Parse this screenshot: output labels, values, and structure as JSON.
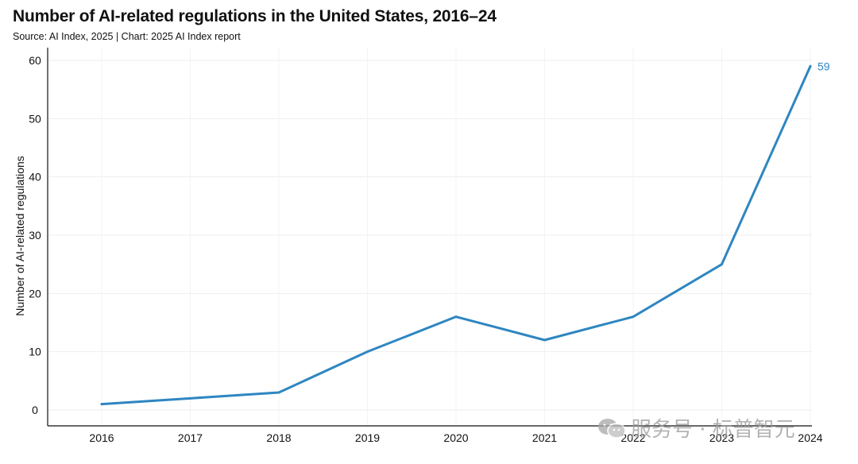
{
  "title": "Number of AI-related regulations in the United States, 2016–24",
  "subtitle": "Source: AI Index, 2025 | Chart: 2025 AI Index report",
  "watermark": "服务号 · 标普智元",
  "chart_data": {
    "type": "line",
    "x": [
      "2016",
      "2017",
      "2018",
      "2019",
      "2020",
      "2021",
      "2022",
      "2023",
      "2024"
    ],
    "series": [
      {
        "values": [
          1,
          2,
          3,
          10,
          16,
          12,
          16,
          25,
          59
        ]
      }
    ],
    "ylabel": "Number of AI-related regulations",
    "ylim": [
      0,
      60
    ],
    "yticks": [
      0,
      10,
      20,
      30,
      40,
      50,
      60
    ],
    "data_labels": [
      {
        "x": "2024",
        "text": "59"
      }
    ],
    "line_color": "#2e86c1",
    "grid": true
  }
}
